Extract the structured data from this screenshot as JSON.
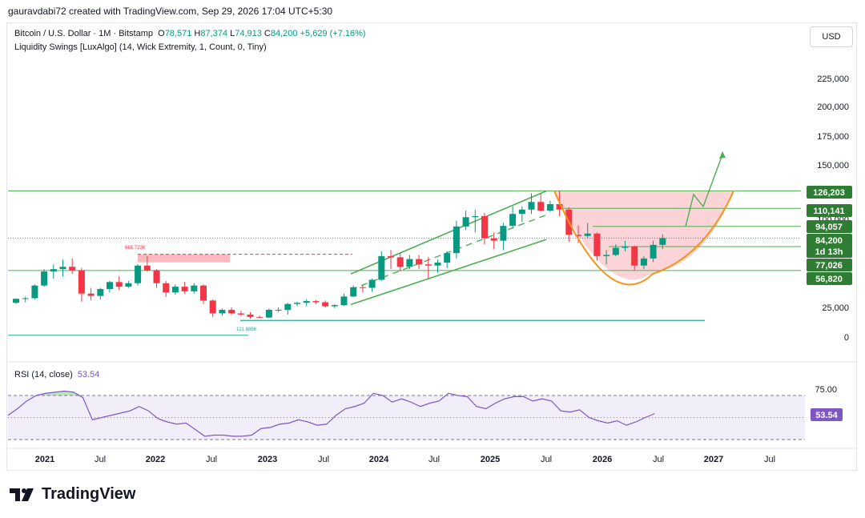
{
  "header": {
    "attribution": "gauravdabi72 created with TradingView.com, Sep 29, 2026 17:04 UTC+5:30"
  },
  "legend": {
    "symbol": "Bitcoin / U.S. Dollar · 1M · Bitstamp",
    "o_label": "O",
    "o": "78,571",
    "h_label": "H",
    "h": "87,374",
    "l_label": "L",
    "l": "74,913",
    "c_label": "C",
    "c": "84,200",
    "change": "+5,629 (+7.16%)",
    "indicator": "Liquidity Swings [LuxAlgo] (14, Wick Extremity, 1, Count, 0, Tiny)"
  },
  "currency_button": "USD",
  "rsi_pane": {
    "label": "RSI (14, close)",
    "value": "53.54",
    "axis_ticks": [
      "75.00"
    ],
    "badge": "53.54"
  },
  "brand": "TradingView",
  "colors": {
    "up": "#089981",
    "down": "#f23645",
    "rsi": "#7e57c2",
    "channel": "#4caf50",
    "cup": "#f7931a",
    "label_bg": "#2e7d32"
  },
  "chart_data": {
    "type": "candlestick",
    "y_ticks": [
      "225,000",
      "200,000",
      "175,000",
      "150,000",
      "100,000",
      "25,000",
      "0"
    ],
    "x_ticks": [
      "2021",
      "Jul",
      "2022",
      "Jul",
      "2023",
      "Jul",
      "2024",
      "Jul",
      "2025",
      "Jul",
      "2026",
      "Jul",
      "2027",
      "Jul"
    ],
    "price_labels": [
      "126,203",
      "110,141",
      "94,057",
      "84,200",
      "1d 13h",
      "77,026",
      "56,820"
    ],
    "annotations": [
      "665.722K",
      "121.885K"
    ],
    "candles": [
      [
        29000,
        33000,
        28000,
        32500
      ],
      [
        32500,
        34500,
        29500,
        33000
      ],
      [
        33000,
        45000,
        32000,
        44000
      ],
      [
        44000,
        58000,
        43000,
        56000
      ],
      [
        56000,
        62000,
        50000,
        58000
      ],
      [
        58000,
        66000,
        52000,
        60000
      ],
      [
        60000,
        67000,
        54000,
        57000
      ],
      [
        57000,
        59000,
        30000,
        37000
      ],
      [
        37000,
        42000,
        31000,
        35000
      ],
      [
        35000,
        42000,
        32000,
        41000
      ],
      [
        41000,
        48000,
        38000,
        47000
      ],
      [
        47000,
        52000,
        40000,
        43000
      ],
      [
        43000,
        48000,
        42000,
        46000
      ],
      [
        46000,
        62000,
        44000,
        61000
      ],
      [
        61000,
        69000,
        56000,
        57000
      ],
      [
        57000,
        58000,
        42000,
        46000
      ],
      [
        46000,
        48000,
        34000,
        38000
      ],
      [
        38000,
        45000,
        36000,
        43000
      ],
      [
        43000,
        47000,
        37000,
        39000
      ],
      [
        39000,
        46000,
        37000,
        44000
      ],
      [
        44000,
        45000,
        28000,
        31000
      ],
      [
        31000,
        32000,
        17000,
        20000
      ],
      [
        20000,
        24000,
        18000,
        23000
      ],
      [
        23000,
        25000,
        19000,
        20000
      ],
      [
        20000,
        22000,
        18000,
        19000
      ],
      [
        19000,
        21000,
        15500,
        17000
      ],
      [
        17000,
        18000,
        16000,
        16500
      ],
      [
        16500,
        24000,
        16000,
        23000
      ],
      [
        23000,
        25000,
        21000,
        23000
      ],
      [
        23000,
        29000,
        19000,
        28000
      ],
      [
        28000,
        30000,
        26000,
        29000
      ],
      [
        29000,
        32000,
        26000,
        30500
      ],
      [
        30500,
        31500,
        28000,
        29500
      ],
      [
        29500,
        31000,
        25000,
        26000
      ],
      [
        26000,
        28000,
        24500,
        27000
      ],
      [
        27000,
        37000,
        26500,
        34500
      ],
      [
        34500,
        44000,
        34000,
        42500
      ],
      [
        42500,
        44000,
        38000,
        42000
      ],
      [
        42000,
        50000,
        38500,
        49000
      ],
      [
        49000,
        73000,
        48000,
        69000
      ],
      [
        69000,
        74000,
        58000,
        68000
      ],
      [
        68000,
        72000,
        56000,
        60000
      ],
      [
        60000,
        70000,
        58000,
        66500
      ],
      [
        66500,
        70000,
        58000,
        62000
      ],
      [
        62000,
        68000,
        50000,
        61000
      ],
      [
        61000,
        66000,
        55000,
        63500
      ],
      [
        63500,
        73000,
        59000,
        71500
      ],
      [
        71500,
        99000,
        67000,
        94000
      ],
      [
        94000,
        108000,
        91000,
        102000
      ],
      [
        102000,
        109000,
        89000,
        103000
      ],
      [
        103000,
        106000,
        79000,
        84000
      ],
      [
        84000,
        89000,
        75000,
        82000
      ],
      [
        82000,
        97000,
        74000,
        94500
      ],
      [
        94500,
        112000,
        93000,
        105000
      ],
      [
        105000,
        112000,
        98000,
        109000
      ],
      [
        109000,
        124000,
        105000,
        116000
      ],
      [
        116000,
        124000,
        107000,
        108000
      ],
      [
        108000,
        117000,
        107000,
        114000
      ],
      [
        114000,
        126000,
        103000,
        109000
      ],
      [
        109000,
        111000,
        81000,
        87000
      ],
      [
        87000,
        95000,
        80000,
        86000
      ],
      [
        86000,
        97000,
        84000,
        88000
      ],
      [
        88000,
        89000,
        65000,
        69000
      ],
      [
        69000,
        74000,
        62000,
        70000
      ],
      [
        70000,
        79000,
        69000,
        76000
      ],
      [
        76000,
        82000,
        73000,
        77000
      ],
      [
        77000,
        78000,
        57000,
        61000
      ],
      [
        61000,
        69000,
        58000,
        67000
      ],
      [
        67000,
        82000,
        64000,
        78500
      ],
      [
        78500,
        87374,
        74913,
        84200
      ]
    ],
    "rsi": [
      52,
      58,
      65,
      70,
      72,
      73,
      74,
      73,
      68,
      48,
      50,
      52,
      54,
      56,
      60,
      56,
      49,
      46,
      44,
      45,
      39,
      33,
      34,
      34,
      33,
      33,
      34,
      40,
      41,
      44,
      45,
      48,
      46,
      43,
      44,
      52,
      58,
      60,
      63,
      72,
      70,
      64,
      67,
      64,
      60,
      63,
      65,
      72,
      70,
      69,
      60,
      58,
      63,
      67,
      69,
      69,
      65,
      67,
      65,
      56,
      55,
      57,
      50,
      47,
      45,
      47,
      43,
      46,
      50,
      53.54
    ],
    "rsi_levels": [
      70,
      50,
      30
    ],
    "ylim": [
      -10000,
      240000
    ]
  }
}
